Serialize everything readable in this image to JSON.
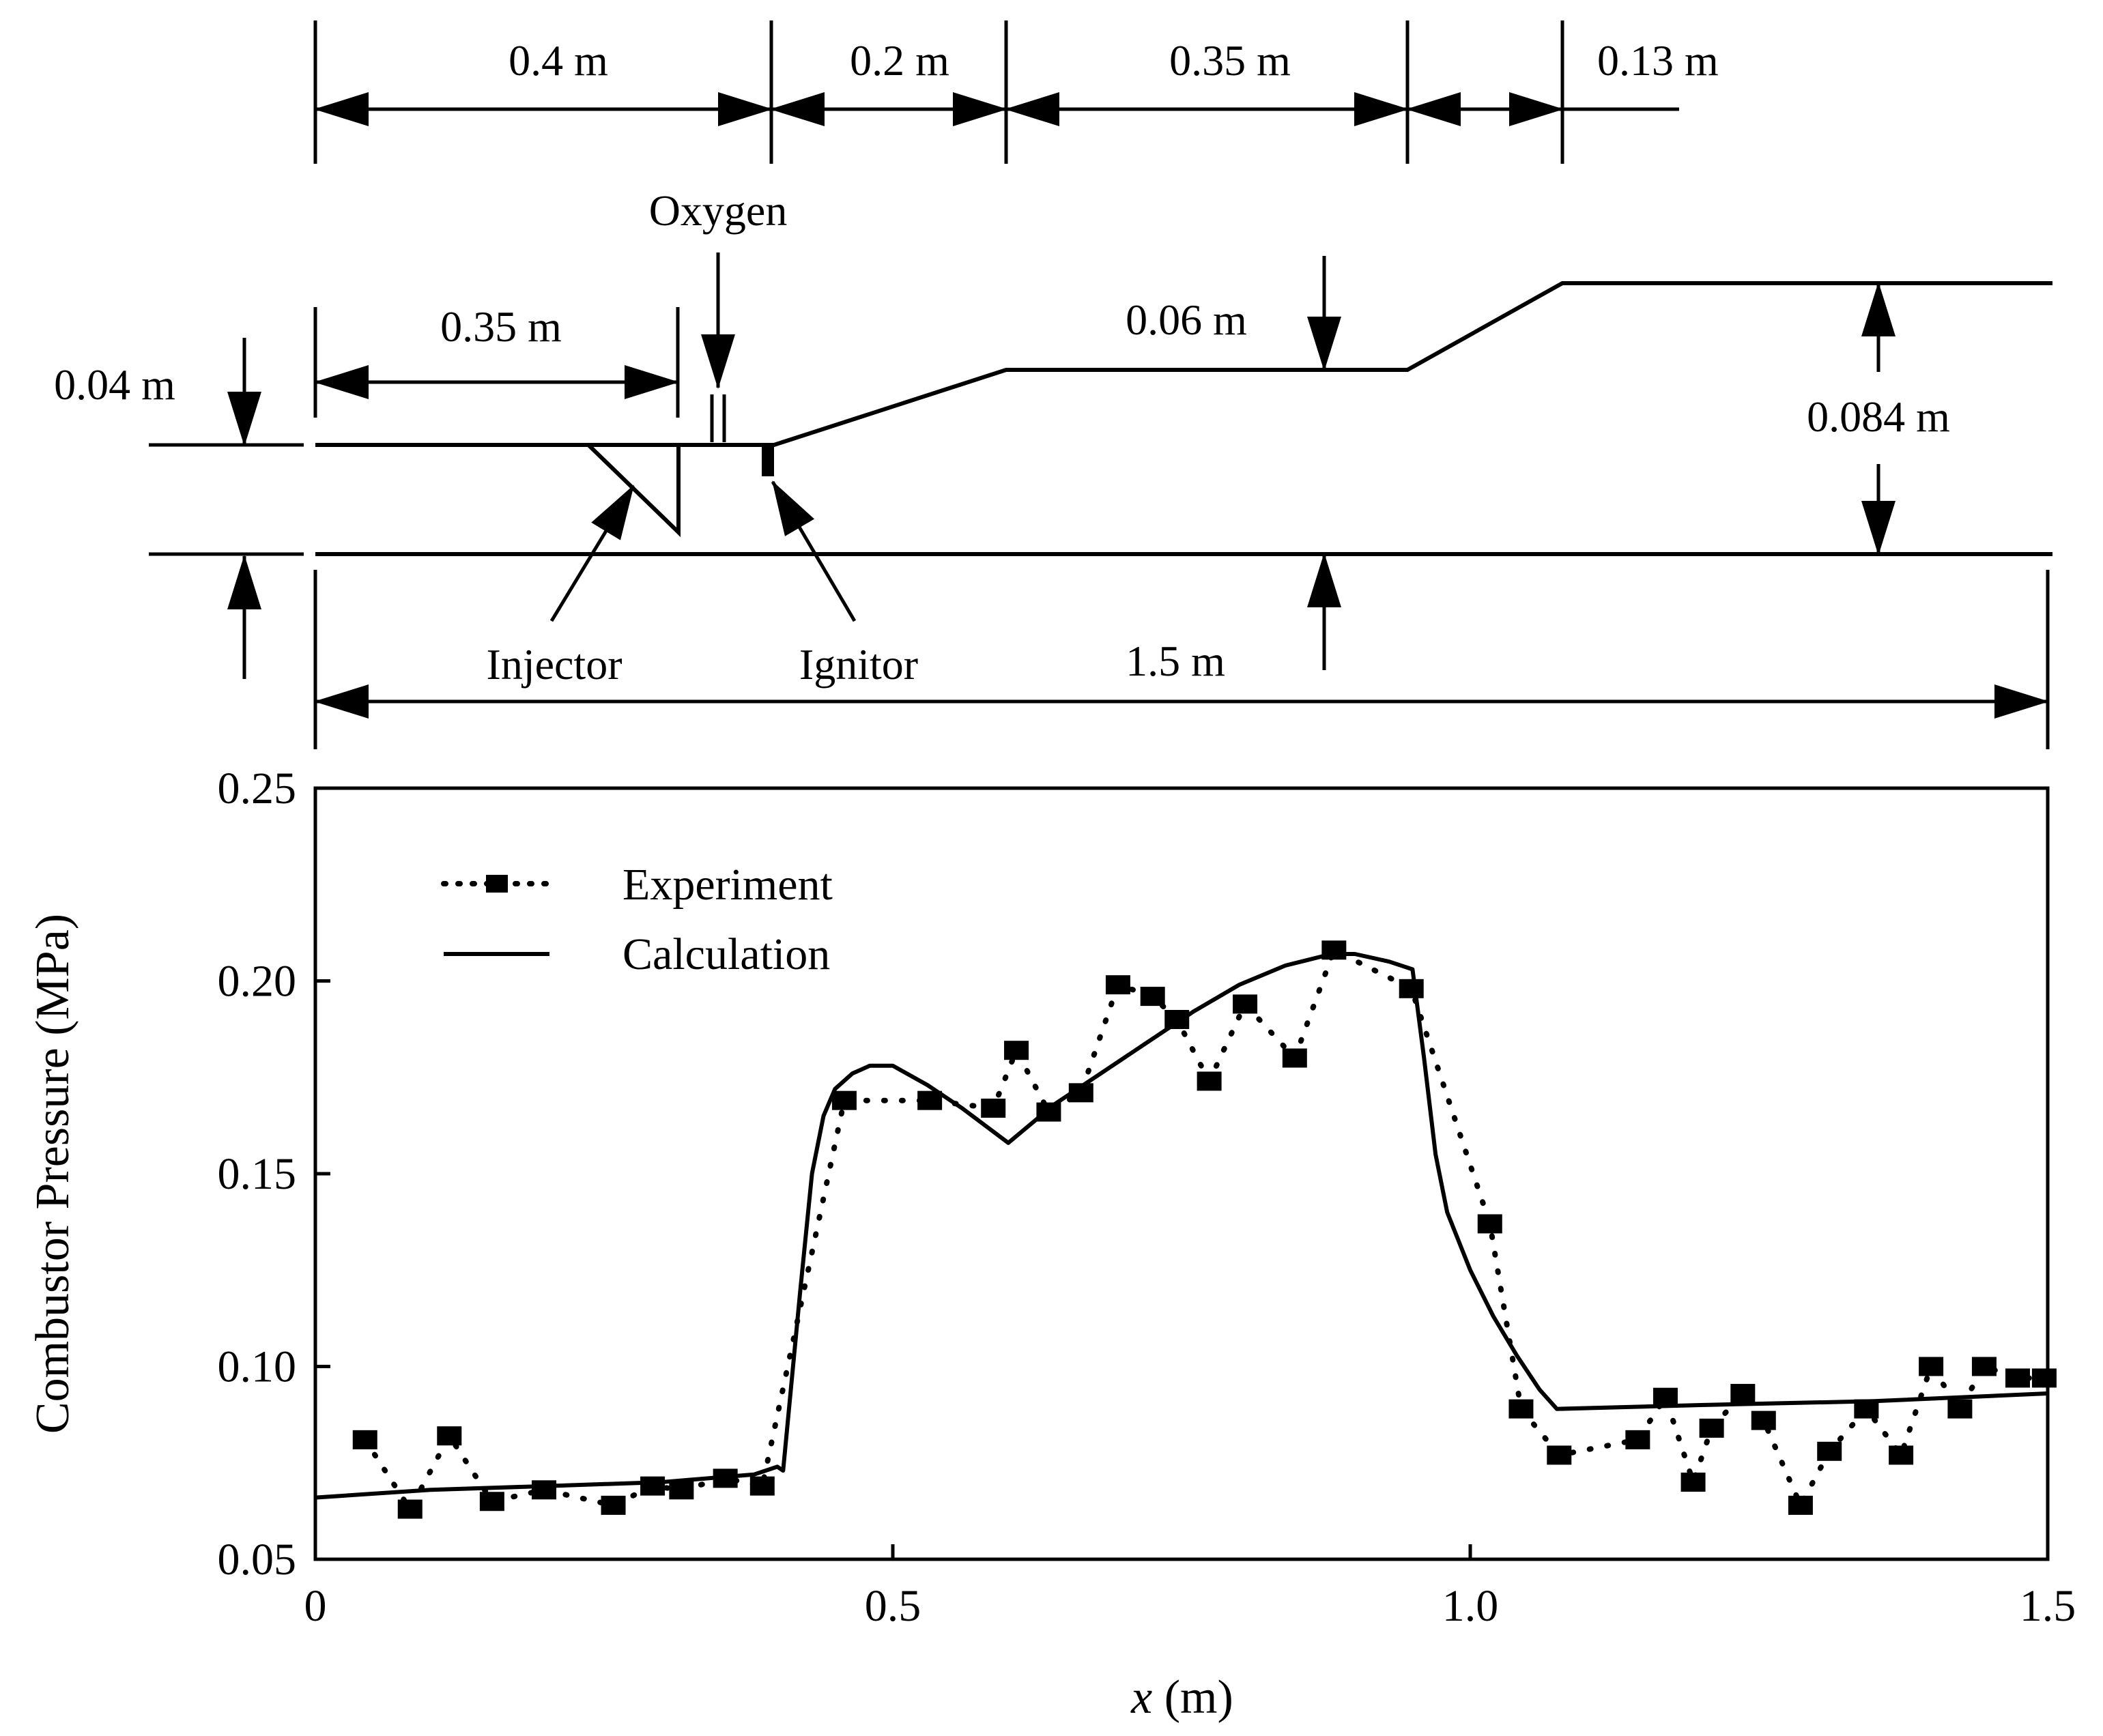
{
  "schematic": {
    "top_dims": [
      "0.4 m",
      "0.2 m",
      "0.35 m",
      "0.13 m"
    ],
    "oxygen_label": "Oxygen",
    "injector_length": "0.35 m",
    "inlet_height": "0.04 m",
    "mid_height": "0.06 m",
    "exit_height": "0.084 m",
    "injector_label": "Injector",
    "ignitor_label": "Ignitor",
    "total_length": "1.5 m"
  },
  "chart_data": {
    "type": "line",
    "title": "",
    "xlabel_var": "x",
    "xlabel_unit": " (m)",
    "ylabel": "Combustor Pressure (MPa)",
    "xlim": [
      0,
      1.5
    ],
    "ylim": [
      0.05,
      0.25
    ],
    "xticks": [
      0,
      0.5,
      1.0,
      1.5
    ],
    "xtick_labels": [
      "0",
      "0.5",
      "1.0",
      "1.5"
    ],
    "yticks": [
      0.05,
      0.1,
      0.15,
      0.2,
      0.25
    ],
    "ytick_labels": [
      "0.05",
      "0.10",
      "0.15",
      "0.20",
      "0.25"
    ],
    "legend": [
      "Experiment",
      "Calculation"
    ],
    "series": [
      {
        "name": "Experiment",
        "style": "dotted-square",
        "x": [
          0.043,
          0.082,
          0.116,
          0.153,
          0.198,
          0.258,
          0.292,
          0.317,
          0.355,
          0.387,
          0.458,
          0.532,
          0.587,
          0.607,
          0.635,
          0.663,
          0.695,
          0.725,
          0.746,
          0.774,
          0.805,
          0.848,
          0.882,
          0.949,
          1.017,
          1.044,
          1.077,
          1.145,
          1.169,
          1.193,
          1.209,
          1.236,
          1.254,
          1.286,
          1.311,
          1.343,
          1.373,
          1.399,
          1.424,
          1.445,
          1.474,
          1.497
        ],
        "y": [
          0.081,
          0.063,
          0.082,
          0.065,
          0.068,
          0.064,
          0.069,
          0.068,
          0.071,
          0.069,
          0.169,
          0.169,
          0.167,
          0.182,
          0.166,
          0.171,
          0.199,
          0.196,
          0.19,
          0.174,
          0.194,
          0.18,
          0.208,
          0.198,
          0.137,
          0.089,
          0.077,
          0.081,
          0.092,
          0.07,
          0.084,
          0.093,
          0.086,
          0.064,
          0.078,
          0.089,
          0.077,
          0.1,
          0.089,
          0.1,
          0.097,
          0.097
        ]
      },
      {
        "name": "Calculation",
        "style": "solid",
        "x": [
          0.0,
          0.1,
          0.2,
          0.3,
          0.38,
          0.4,
          0.405,
          0.42,
          0.43,
          0.44,
          0.45,
          0.465,
          0.48,
          0.5,
          0.53,
          0.56,
          0.6,
          0.64,
          0.68,
          0.72,
          0.76,
          0.8,
          0.84,
          0.88,
          0.9,
          0.93,
          0.95,
          0.96,
          0.97,
          0.98,
          1.0,
          1.02,
          1.04,
          1.06,
          1.075,
          1.2,
          1.35,
          1.5
        ],
        "y": [
          0.066,
          0.068,
          0.069,
          0.07,
          0.072,
          0.074,
          0.073,
          0.12,
          0.15,
          0.165,
          0.172,
          0.176,
          0.178,
          0.178,
          0.173,
          0.167,
          0.158,
          0.168,
          0.176,
          0.184,
          0.192,
          0.199,
          0.204,
          0.207,
          0.207,
          0.205,
          0.203,
          0.18,
          0.155,
          0.14,
          0.125,
          0.113,
          0.103,
          0.094,
          0.089,
          0.09,
          0.091,
          0.093
        ]
      }
    ]
  }
}
